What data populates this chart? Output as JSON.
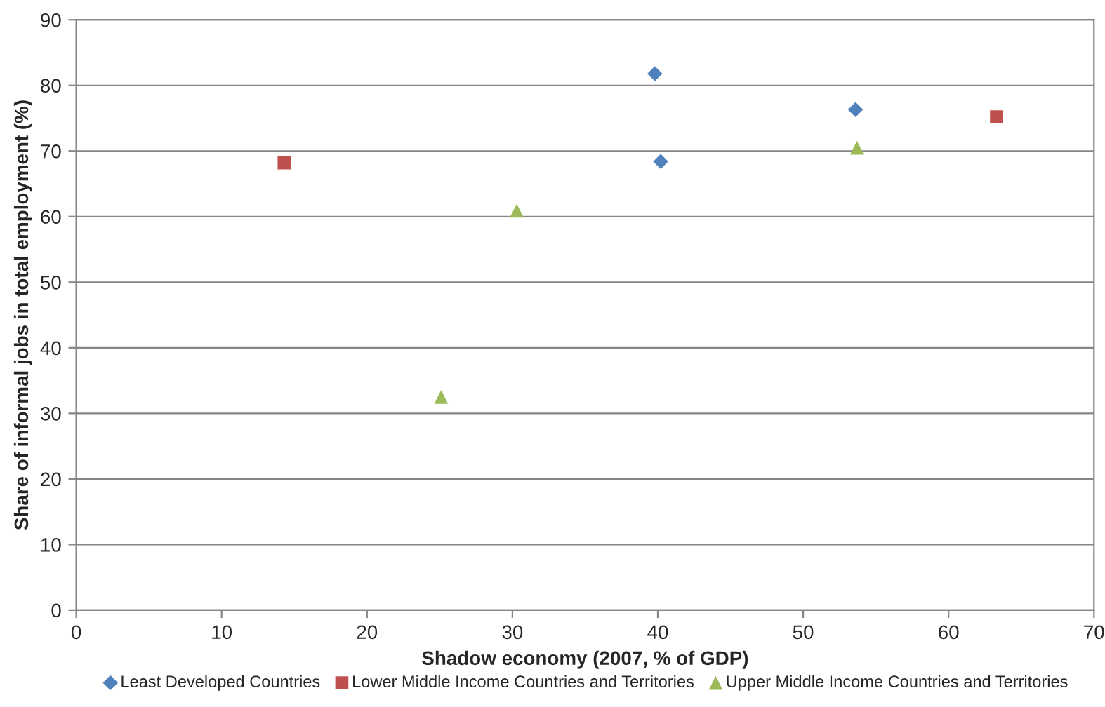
{
  "chart_data": {
    "type": "scatter",
    "xlabel": "Shadow economy (2007, % of GDP)",
    "ylabel": "Share of informal jobs in total employment (%)",
    "series": [
      {
        "name": "Least Developed Countries",
        "color": "#4f81bd",
        "marker": "diamond",
        "x": [
          39.8,
          40.2,
          53.6
        ],
        "values": [
          81.8,
          68.4,
          76.3
        ]
      },
      {
        "name": "Lower Middle Income Countries and Territories",
        "color": "#c0504d",
        "marker": "square",
        "x": [
          14.3,
          63.3
        ],
        "values": [
          68.2,
          75.2
        ]
      },
      {
        "name": "Upper Middle Income Countries and Territories",
        "color": "#9bbb59",
        "marker": "triangle",
        "x": [
          25.1,
          30.3,
          53.7
        ],
        "values": [
          32.5,
          60.9,
          70.5
        ]
      }
    ],
    "xlim": [
      0,
      70
    ],
    "xticks": [
      0,
      10,
      20,
      30,
      40,
      50,
      60,
      70
    ],
    "ylim": [
      0,
      90
    ],
    "yticks": [
      0,
      10,
      20,
      30,
      40,
      50,
      60,
      70,
      80,
      90
    ],
    "grid": "y",
    "legend": "bottom"
  }
}
